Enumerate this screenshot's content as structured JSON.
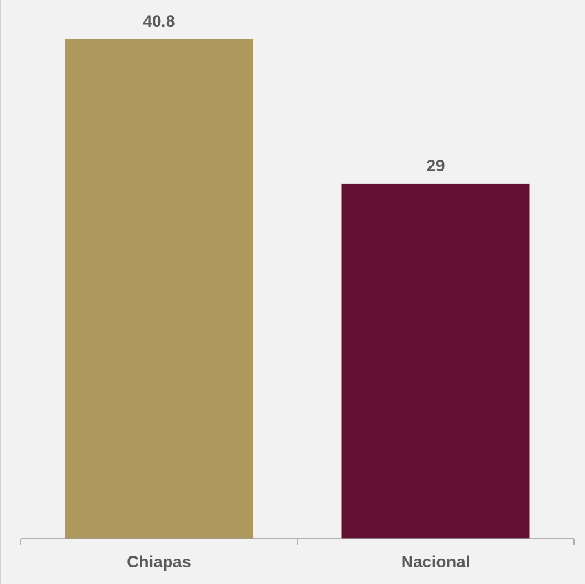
{
  "chart_data": {
    "type": "bar",
    "categories": [
      "Chiapas",
      "Nacional"
    ],
    "values": [
      40.8,
      29
    ],
    "value_labels": [
      "40.8",
      "29"
    ],
    "colors": [
      "#ae985d",
      "#621132"
    ],
    "ylim": [
      0,
      44
    ],
    "grid": false,
    "legend": "none"
  }
}
